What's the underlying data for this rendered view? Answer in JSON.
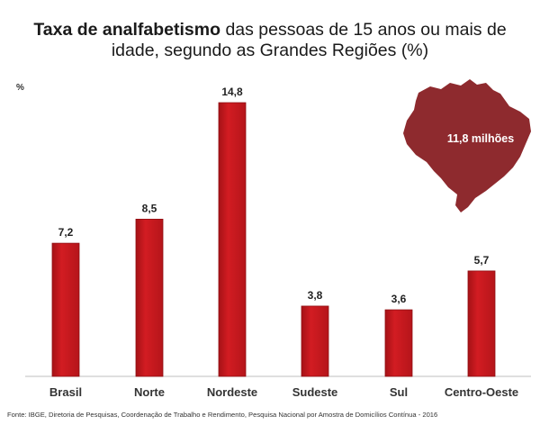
{
  "title": {
    "bold": "Taxa de analfabetismo",
    "line1_rest": " das pessoas de 15 anos ou mais de",
    "line2": "idade, segundo as Grandes Regiões (%)"
  },
  "unit_label": "%",
  "map_label": "11,8 milhões",
  "source": "Fonte: IBGE, Diretoria de Pesquisas, Coordenação de Trabalho e Rendimento, Pesquisa Nacional por Amostra de Domicílios Contínua - 2016",
  "colors": {
    "bar": "#c4171c",
    "bar_dark": "#8f0f13",
    "map": "#8e2a2e",
    "axis": "#bfbfbf"
  },
  "chart_data": {
    "type": "bar",
    "categories": [
      "Brasil",
      "Norte",
      "Nordeste",
      "Sudeste",
      "Sul",
      "Centro-Oeste"
    ],
    "values": [
      7.2,
      8.5,
      14.8,
      3.8,
      3.6,
      5.7
    ],
    "value_labels": [
      "7,2",
      "8,5",
      "14,8",
      "3,8",
      "3,6",
      "5,7"
    ],
    "ylabel": "%",
    "ylim": [
      0,
      14.8
    ],
    "grid": false
  }
}
